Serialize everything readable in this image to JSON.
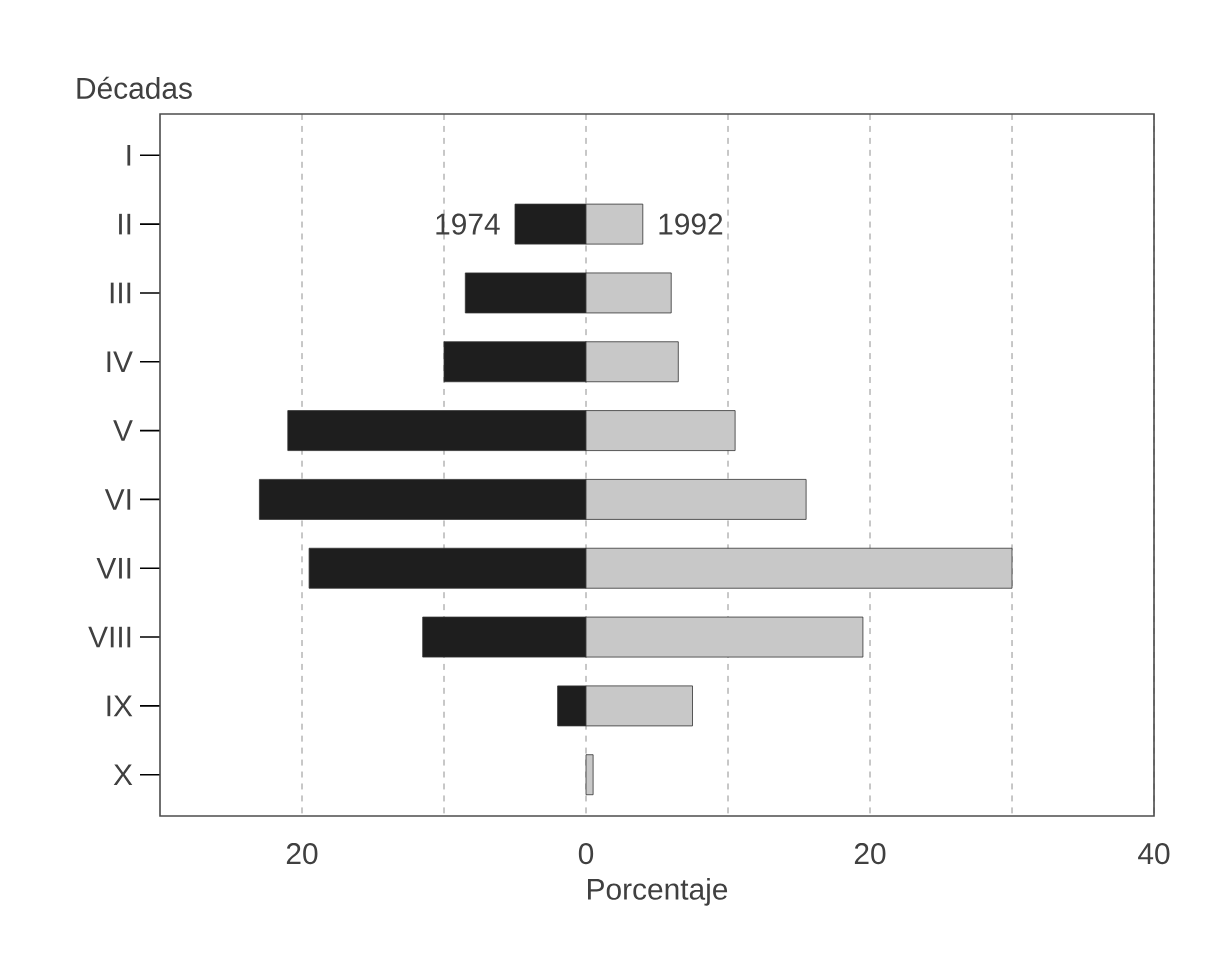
{
  "chart_data": {
    "type": "bar",
    "orientation": "horizontal",
    "xlabel": "Porcentaje",
    "ylabel": "Décadas",
    "categories": [
      "I",
      "II",
      "III",
      "IV",
      "V",
      "VI",
      "VII",
      "VIII",
      "IX",
      "X"
    ],
    "series": [
      {
        "name": "1974",
        "color": "#1e1e1e",
        "values": [
          0,
          -5,
          -8.5,
          -10,
          -21,
          -23,
          -19.5,
          -11.5,
          -2,
          0
        ]
      },
      {
        "name": "1992",
        "color": "#c8c8c8",
        "values": [
          0,
          4,
          6,
          6.5,
          10.5,
          15.5,
          30,
          19.5,
          7.5,
          0.5
        ]
      }
    ],
    "xlim": [
      -30,
      40
    ],
    "xticks": [
      {
        "value": -20,
        "label": "20"
      },
      {
        "value": -10,
        "label": null
      },
      0,
      {
        "value": 10,
        "label": null
      },
      20,
      {
        "value": 30,
        "label": null
      },
      40
    ],
    "stacked": true,
    "grid": "x"
  }
}
